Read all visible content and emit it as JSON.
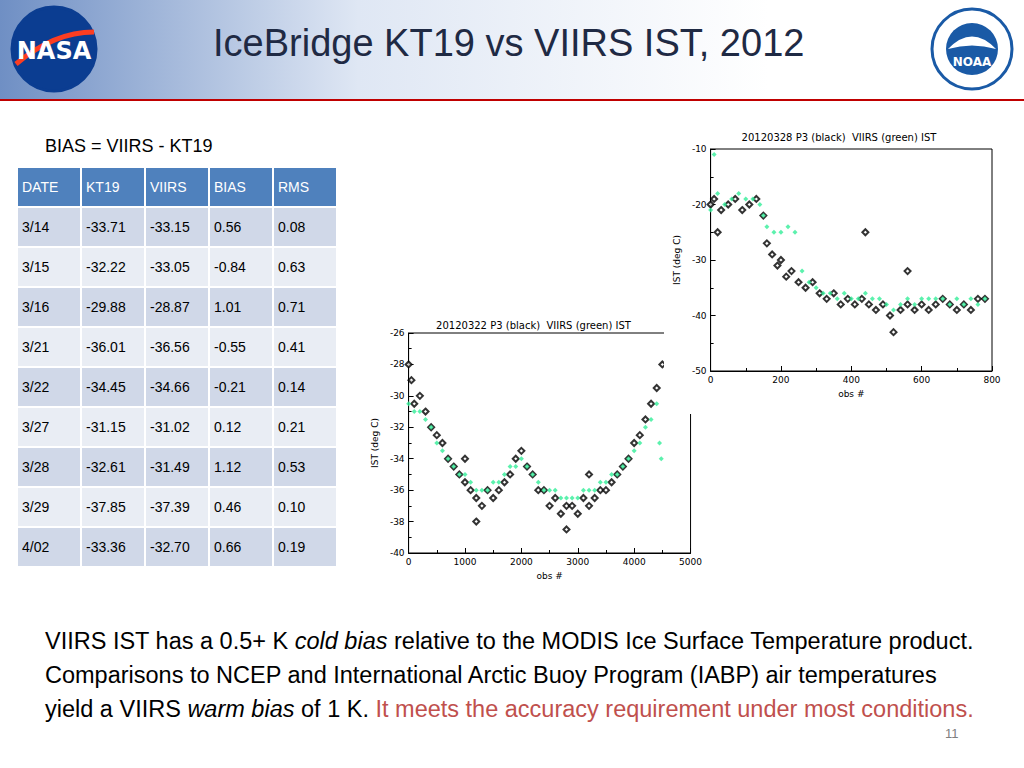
{
  "header": {
    "title": "IceBridge KT19 vs VIIRS IST, 2012",
    "logos": [
      "NASA",
      "NOAA"
    ]
  },
  "bias_note": "BIAS = VIIRS -  KT19",
  "table": {
    "columns": [
      "DATE",
      "KT19",
      "VIIRS",
      "BIAS",
      "RMS"
    ],
    "rows": [
      [
        "3/14",
        "-33.71",
        "-33.15",
        "0.56",
        "0.08"
      ],
      [
        "3/15",
        "-32.22",
        "-33.05",
        "-0.84",
        "0.63"
      ],
      [
        "3/16",
        "-29.88",
        "-28.87",
        "1.01",
        "0.71"
      ],
      [
        "3/21",
        "-36.01",
        "-36.56",
        "-0.55",
        "0.41"
      ],
      [
        "3/22",
        "-34.45",
        "-34.66",
        "-0.21",
        "0.14"
      ],
      [
        "3/27",
        "-31.15",
        "-31.02",
        "0.12",
        "0.21"
      ],
      [
        "3/28",
        "-32.61",
        "-31.49",
        "1.12",
        "0.53"
      ],
      [
        "3/29",
        "-37.85",
        "-37.39",
        "0.46",
        "0.10"
      ],
      [
        "4/02",
        "-33.36",
        "-32.70",
        "0.66",
        "0.19"
      ]
    ]
  },
  "footer": {
    "segments": [
      {
        "text": "VIIRS IST has a 0.5+ K ",
        "style": "normal"
      },
      {
        "text": "cold bias",
        "style": "italic"
      },
      {
        "text": " relative to the MODIS Ice Surface Temperature product. Comparisons to NCEP and International Arctic Buoy Program (IABP) air temperatures yield a VIIRS ",
        "style": "normal"
      },
      {
        "text": "warm bias",
        "style": "italic"
      },
      {
        "text": " of 1 K. ",
        "style": "normal"
      },
      {
        "text": "It meets the accuracy requirement under most conditions.",
        "style": "highlight"
      }
    ]
  },
  "page_number": "11",
  "chart_data": [
    {
      "type": "scatter",
      "title": "20120328 P3 (black)  VIIRS (green) IST",
      "x_label": "obs #",
      "y_label": "IST (deg C)",
      "xlim": [
        0,
        800
      ],
      "xticks": [
        0,
        200,
        400,
        600,
        800
      ],
      "ylim": [
        -50,
        -10
      ],
      "yticks": [
        -50,
        -40,
        -30,
        -20,
        -10
      ],
      "grid": false,
      "series": [
        {
          "name": "P3",
          "color": "#000000",
          "marker": "open_diamond",
          "x": [
            0,
            10,
            20,
            30,
            50,
            70,
            90,
            110,
            130,
            150,
            160,
            175,
            190,
            200,
            215,
            230,
            250,
            270,
            290,
            310,
            330,
            350,
            370,
            390,
            410,
            430,
            440,
            450,
            470,
            490,
            510,
            520,
            540,
            560,
            560,
            580,
            600,
            620,
            640,
            660,
            680,
            700,
            720,
            740,
            760,
            780
          ],
          "values": [
            -20,
            -19,
            -25,
            -21,
            -20,
            -19,
            -21,
            -20,
            -19,
            -22,
            -27,
            -29,
            -31,
            -30,
            -33,
            -32,
            -34,
            -35,
            -34,
            -36,
            -37,
            -36,
            -38,
            -37,
            -38,
            -37,
            -25,
            -38,
            -39,
            -38,
            -40,
            -43,
            -39,
            -38,
            -32,
            -39,
            -38,
            -39,
            -38,
            -37,
            -38,
            -39,
            -38,
            -39,
            -37,
            -37
          ]
        },
        {
          "name": "VIIRS",
          "color": "#33ee99",
          "marker": "diamond",
          "x": [
            0,
            10,
            20,
            40,
            60,
            80,
            100,
            120,
            140,
            150,
            160,
            180,
            200,
            220,
            240,
            260,
            280,
            300,
            320,
            340,
            360,
            380,
            400,
            420,
            440,
            460,
            480,
            500,
            520,
            540,
            560,
            580,
            600,
            620,
            640,
            660,
            680,
            700,
            720,
            740,
            760,
            780
          ],
          "values": [
            -21,
            -11,
            -18,
            -20,
            -19,
            -18,
            -19,
            -19,
            -20,
            -22,
            -24,
            -25,
            -25,
            -24,
            -25,
            -32,
            -34,
            -35,
            -36,
            -36,
            -37,
            -36,
            -37,
            -37,
            -36,
            -37,
            -37,
            -38,
            -39,
            -38,
            -37,
            -38,
            -37,
            -37,
            -37,
            -37,
            -38,
            -37,
            -38,
            -37,
            -38,
            -37
          ]
        }
      ]
    },
    {
      "type": "scatter",
      "title": "20120322 P3 (black)  VIIRS (green) IST",
      "x_label": "obs #",
      "y_label": "IST (deg C)",
      "xlim": [
        0,
        5000
      ],
      "xticks": [
        0,
        1000,
        2000,
        3000,
        4000,
        5000
      ],
      "ylim": [
        -40,
        -26
      ],
      "yticks": [
        -40,
        -38,
        -36,
        -34,
        -32,
        -30,
        -28,
        -26
      ],
      "grid": false,
      "series": [
        {
          "name": "P3",
          "color": "#000000",
          "marker": "open_diamond",
          "x": [
            0,
            50,
            100,
            200,
            300,
            400,
            500,
            600,
            700,
            800,
            900,
            1000,
            1000,
            1100,
            1200,
            1200,
            1300,
            1400,
            1500,
            1600,
            1700,
            1800,
            1900,
            2000,
            2100,
            2200,
            2300,
            2400,
            2500,
            2600,
            2700,
            2800,
            2800,
            2900,
            3000,
            3100,
            3200,
            3200,
            3300,
            3400,
            3500,
            3600,
            3700,
            3800,
            3900,
            4000,
            4100,
            4200,
            4300,
            4400,
            4500
          ],
          "values": [
            -28,
            -29,
            -30.5,
            -30,
            -31,
            -32,
            -32.5,
            -33,
            -34,
            -34.5,
            -35,
            -35.5,
            -34,
            -36,
            -36.5,
            -38,
            -37,
            -36,
            -36.5,
            -36,
            -35.5,
            -35,
            -34,
            -33.5,
            -34.5,
            -35,
            -36,
            -36,
            -37,
            -36.5,
            -37.5,
            -37,
            -38.5,
            -37,
            -37.5,
            -36.5,
            -37,
            -35,
            -36.5,
            -36,
            -36,
            -35.5,
            -35,
            -34.5,
            -34,
            -33,
            -32.5,
            -31.5,
            -30.5,
            -29.5,
            -28
          ]
        },
        {
          "name": "VIIRS",
          "color": "#33ee99",
          "marker": "diamond",
          "x": [
            0,
            100,
            200,
            300,
            400,
            500,
            600,
            700,
            800,
            900,
            1000,
            1100,
            1200,
            1300,
            1400,
            1500,
            1600,
            1700,
            1800,
            1900,
            2000,
            2100,
            2200,
            2300,
            2400,
            2500,
            2600,
            2700,
            2800,
            2900,
            3000,
            3100,
            3200,
            3300,
            3400,
            3500,
            3600,
            3700,
            3800,
            3900,
            4000,
            4100,
            4200,
            4300,
            4400,
            4450,
            4480
          ],
          "values": [
            -30.5,
            -31,
            -31,
            -31.5,
            -32,
            -33,
            -33.5,
            -34,
            -34.5,
            -35,
            -35,
            -35.5,
            -36,
            -36,
            -36,
            -35.5,
            -35.5,
            -35,
            -34.5,
            -34.5,
            -34,
            -34.5,
            -35,
            -35.5,
            -36,
            -36,
            -36,
            -36.5,
            -36.5,
            -36.5,
            -36.5,
            -36,
            -36,
            -36,
            -35.5,
            -35.5,
            -35,
            -35,
            -34.5,
            -34,
            -33.5,
            -33,
            -32,
            -31.5,
            -30.5,
            -33,
            -34
          ]
        }
      ]
    }
  ]
}
